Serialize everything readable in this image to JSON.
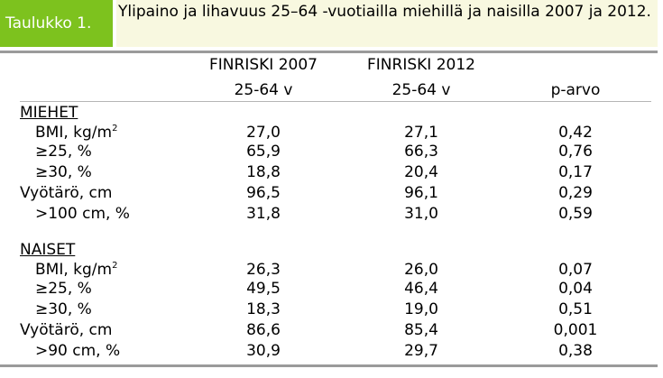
{
  "title": {
    "badge": "Taulukko 1.",
    "text": "Ylipaino ja lihavuus 25–64 -vuotiailla miehillä ja naisilla 2007 ja 2012."
  },
  "columns": {
    "col1_line1": "FINRISKI 2007",
    "col1_line2": "25-64 v",
    "col2_line1": "FINRISKI 2012",
    "col2_line2": "25-64 v",
    "col3": "p-arvo"
  },
  "sections": [
    {
      "heading": "MIEHET",
      "rows": [
        {
          "label": "BMI, kg/m",
          "sup": "2",
          "v2007": "27,0",
          "v2012": "27,1",
          "p": "0,42"
        },
        {
          "label": "≥25, %",
          "v2007": "65,9",
          "v2012": "66,3",
          "p": "0,76"
        },
        {
          "label": "≥30, %",
          "v2007": "18,8",
          "v2012": "20,4",
          "p": "0,17"
        },
        {
          "label": "Vyötärö, cm",
          "v2007": "96,5",
          "v2012": "96,1",
          "p": "0,29"
        },
        {
          "label": ">100 cm, %",
          "v2007": "31,8",
          "v2012": "31,0",
          "p": "0,59"
        }
      ]
    },
    {
      "heading": "NAISET",
      "rows": [
        {
          "label": "BMI, kg/m",
          "sup": "2",
          "v2007": "26,3",
          "v2012": "26,0",
          "p": "0,07"
        },
        {
          "label": "≥25, %",
          "v2007": "49,5",
          "v2012": "46,4",
          "p": "0,04"
        },
        {
          "label": "≥30, %",
          "v2007": "18,3",
          "v2012": "19,0",
          "p": "0,51"
        },
        {
          "label": "Vyötärö, cm",
          "v2007": "86,6",
          "v2012": "85,4",
          "p": "0,001"
        },
        {
          "label": ">90 cm, %",
          "v2007": "30,9",
          "v2012": "29,7",
          "p": "0,38"
        }
      ]
    }
  ]
}
